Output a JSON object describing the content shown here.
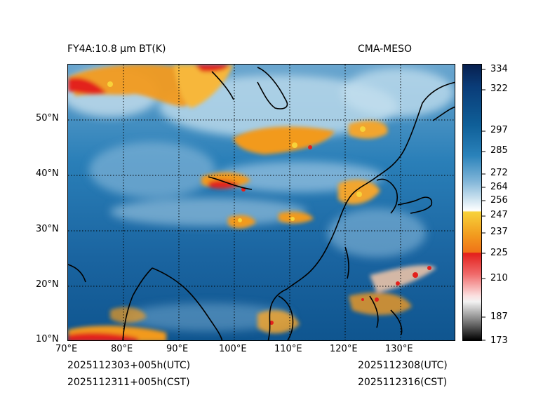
{
  "header": {
    "left_title": "FY4A:10.8 µm BT(K)",
    "right_title": "CMA-MESO"
  },
  "footer": {
    "init_utc": "2025112303+005h(UTC)",
    "init_cst": "2025112311+005h(CST)",
    "valid_utc": "2025112308(UTC)",
    "valid_cst": "2025112316(CST)"
  },
  "map": {
    "lon_labels": [
      "70°E",
      "80°E",
      "90°E",
      "100°E",
      "110°E",
      "120°E",
      "130°E"
    ],
    "lat_labels": [
      "10°N",
      "20°N",
      "30°N",
      "40°N",
      "50°N"
    ]
  },
  "colorbar": {
    "unit": "K",
    "ticks": [
      "173",
      "187",
      "210",
      "225",
      "237",
      "247",
      "256",
      "264",
      "272",
      "285",
      "297",
      "322",
      "334"
    ]
  },
  "colors": {
    "deep_blue": "#0d4f8a",
    "mid_blue": "#2a7fb8",
    "light_blue": "#a8cde4",
    "orange": "#f29a1e",
    "red": "#e3201c",
    "yellow": "#f7d23a"
  }
}
